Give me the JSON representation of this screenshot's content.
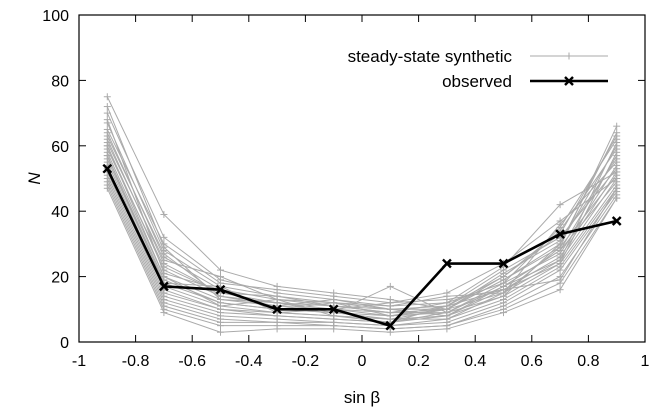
{
  "chart_data": {
    "type": "line",
    "title": "",
    "xlabel": "sin β",
    "ylabel": "N",
    "xlim": [
      -1,
      1
    ],
    "ylim": [
      0,
      100
    ],
    "xticks": [
      "-1",
      "-0.8",
      "-0.6",
      "-0.4",
      "-0.2",
      "0",
      "0.2",
      "0.4",
      "0.6",
      "0.8",
      "1"
    ],
    "yticks": [
      "0",
      "20",
      "40",
      "60",
      "80",
      "100"
    ],
    "legend_position": "top-right",
    "grid": false,
    "x": [
      -0.9,
      -0.7,
      -0.5,
      -0.3,
      -0.1,
      0.1,
      0.3,
      0.5,
      0.7,
      0.9
    ],
    "series": [
      {
        "name": "steady-state synthetic",
        "color": "#aaaaaa",
        "marker": "plus",
        "realizations": [
          [
            75,
            39,
            22,
            17,
            15,
            13,
            10,
            15,
            29,
            66
          ],
          [
            70,
            32,
            19,
            15,
            13,
            11,
            12,
            18,
            35,
            62
          ],
          [
            67,
            28,
            17,
            14,
            12,
            10,
            10,
            19,
            30,
            60
          ],
          [
            64,
            26,
            16,
            13,
            11,
            10,
            11,
            20,
            34,
            59
          ],
          [
            62,
            24,
            15,
            12,
            11,
            9,
            9,
            17,
            28,
            57
          ],
          [
            60,
            22,
            14,
            12,
            10,
            9,
            10,
            21,
            31,
            56
          ],
          [
            58,
            20,
            13,
            11,
            10,
            8,
            9,
            18,
            27,
            54
          ],
          [
            57,
            19,
            12,
            10,
            9,
            8,
            11,
            22,
            32,
            53
          ],
          [
            56,
            18,
            12,
            10,
            9,
            7,
            8,
            16,
            26,
            52
          ],
          [
            55,
            17,
            11,
            9,
            8,
            7,
            10,
            19,
            29,
            51
          ],
          [
            54,
            16,
            10,
            9,
            8,
            7,
            7,
            15,
            25,
            50
          ],
          [
            53,
            15,
            10,
            8,
            7,
            6,
            9,
            17,
            28,
            49
          ],
          [
            52,
            14,
            9,
            8,
            7,
            6,
            8,
            14,
            24,
            48
          ],
          [
            51,
            13,
            8,
            7,
            6,
            5,
            7,
            13,
            23,
            47
          ],
          [
            50,
            12,
            7,
            6,
            6,
            5,
            6,
            12,
            22,
            46
          ],
          [
            49,
            11,
            6,
            6,
            5,
            4,
            5,
            11,
            20,
            45
          ],
          [
            48,
            10,
            5,
            5,
            5,
            4,
            5,
            10,
            18,
            44
          ],
          [
            47,
            9,
            3,
            4,
            4,
            3,
            4,
            9,
            16,
            44
          ],
          [
            65,
            30,
            18,
            16,
            14,
            12,
            13,
            16,
            24,
            58
          ],
          [
            61,
            25,
            20,
            13,
            12,
            11,
            14,
            15,
            36,
            55
          ],
          [
            59,
            23,
            15,
            14,
            11,
            9,
            12,
            23,
            42,
            52
          ],
          [
            63,
            27,
            14,
            11,
            13,
            10,
            8,
            17,
            25,
            61
          ],
          [
            68,
            21,
            16,
            10,
            12,
            8,
            10,
            20,
            33,
            63
          ],
          [
            72,
            29,
            13,
            12,
            9,
            17,
            9,
            14,
            30,
            64
          ],
          [
            57,
            18,
            17,
            9,
            10,
            12,
            15,
            24,
            37,
            50
          ],
          [
            60,
            20,
            11,
            13,
            8,
            6,
            11,
            16,
            19,
            47
          ]
        ]
      },
      {
        "name": "observed",
        "color": "#000000",
        "marker": "cross",
        "values": [
          53,
          17,
          16,
          10,
          10,
          5,
          24,
          24,
          33,
          37
        ]
      }
    ]
  }
}
